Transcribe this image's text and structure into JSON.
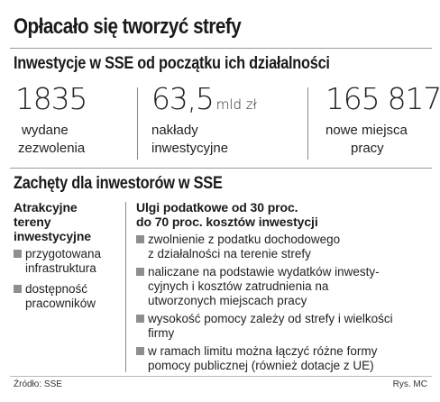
{
  "title": "Opłacało się tworzyć strefy",
  "investments": {
    "heading": "Inwestycje w SSE od początku ich działalności",
    "stats": [
      {
        "value": "1835",
        "unit": "",
        "label_lines": [
          "wydane",
          "zezwolenia"
        ]
      },
      {
        "value": "63,5",
        "unit": "mld zł",
        "label_lines": [
          "nakłady",
          "inwestycyjne"
        ]
      },
      {
        "value": "165 817",
        "unit": "",
        "label_lines": [
          "nowe miejsca",
          "pracy"
        ]
      }
    ]
  },
  "incentives": {
    "heading": "Zachęty dla inwestorów w SSE",
    "left": {
      "heading_lines": [
        "Atrakcyjne",
        "tereny",
        "inwestycyjne"
      ],
      "items": [
        [
          "przygotowana",
          "infrastruktura"
        ],
        [
          "dostępność",
          "pracowników"
        ]
      ]
    },
    "right": {
      "heading_lines": [
        "Ulgi podatkowe od 30 proc.",
        "do 70 proc. kosztów inwestycji"
      ],
      "items": [
        [
          "zwolnienie z podatku dochodowego",
          "z działalności na terenie strefy"
        ],
        [
          "naliczane na podstawie wydatków inwesty-",
          "cyjnych i kosztów zatrudnienia na",
          "utworzonych miejscach pracy"
        ],
        [
          "wysokość pomocy zależy od strefy i wielkości",
          "firmy"
        ],
        [
          "w ramach limitu można łączyć różne formy",
          "pomocy publicznej (również dotacje z UE)"
        ]
      ]
    }
  },
  "footer": {
    "source": "Źródło: SSE",
    "credit": "Rys. MC"
  },
  "colors": {
    "bullet": "#8e8e8e",
    "rule": "#9a9a9a",
    "text": "#1a1a1a"
  }
}
